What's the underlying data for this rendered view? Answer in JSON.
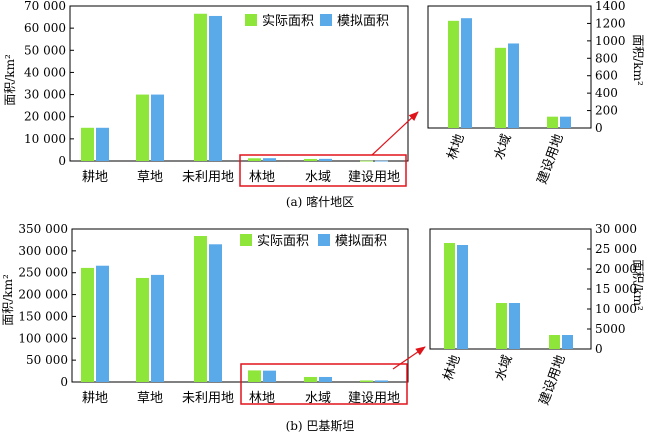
{
  "colors": {
    "actual": "#8ee63a",
    "simulated": "#5aa9e9",
    "highlight": "#e0131a"
  },
  "legend": {
    "actual": "实际面积",
    "simulated": "模拟面积"
  },
  "panels": [
    {
      "caption": "(a) 喀什地区",
      "ylabel": "面积/km²",
      "inset_ylabel": "面积/km²",
      "y_tick_labels": [
        "0",
        "10 000",
        "20 000",
        "30 000",
        "40 000",
        "50 000",
        "60 000",
        "70 000"
      ],
      "inset_tick_labels": [
        "0",
        "200",
        "400",
        "600",
        "800",
        "1000",
        "1200",
        "1400"
      ]
    },
    {
      "caption": "(b) 巴基斯坦",
      "ylabel": "面积/km²",
      "inset_ylabel": "面积/km²",
      "y_tick_labels": [
        "0",
        "50 000",
        "100 000",
        "150 000",
        "200 000",
        "250 000",
        "300 000",
        "350 000"
      ],
      "inset_tick_labels": [
        "0",
        "5000",
        "10 000",
        "15 000",
        "20 000",
        "25 000",
        "30 000"
      ]
    }
  ],
  "chart_data": [
    {
      "type": "bar",
      "title": "(a) 喀什地区",
      "ylabel": "面积/km²",
      "categories": [
        "耕地",
        "草地",
        "未利用地",
        "林地",
        "水域",
        "建设用地"
      ],
      "series": [
        {
          "name": "实际面积",
          "values": [
            15000,
            30000,
            66500,
            1230,
            920,
            130
          ]
        },
        {
          "name": "模拟面积",
          "values": [
            15000,
            30000,
            65500,
            1260,
            970,
            130
          ]
        }
      ],
      "ylim": [
        0,
        70000
      ],
      "legend": "top-right",
      "inset": {
        "categories": [
          "林地",
          "水域",
          "建设用地"
        ],
        "series": [
          {
            "name": "实际面积",
            "values": [
              1230,
              920,
              130
            ]
          },
          {
            "name": "模拟面积",
            "values": [
              1260,
              970,
              130
            ]
          }
        ],
        "ylim": [
          0,
          1400
        ],
        "yaxis_side": "right"
      }
    },
    {
      "type": "bar",
      "title": "(b) 巴基斯坦",
      "ylabel": "面积/km²",
      "categories": [
        "耕地",
        "草地",
        "未利用地",
        "林地",
        "水域",
        "建设用地"
      ],
      "series": [
        {
          "name": "实际面积",
          "values": [
            261000,
            238000,
            334000,
            26500,
            11500,
            3500
          ]
        },
        {
          "name": "模拟面积",
          "values": [
            266000,
            245000,
            315000,
            26000,
            11500,
            3500
          ]
        }
      ],
      "ylim": [
        0,
        350000
      ],
      "legend": "top-right",
      "inset": {
        "categories": [
          "林地",
          "水域",
          "建设用地"
        ],
        "series": [
          {
            "name": "实际面积",
            "values": [
              26500,
              11500,
              3500
            ]
          },
          {
            "name": "模拟面积",
            "values": [
              26000,
              11500,
              3500
            ]
          }
        ],
        "ylim": [
          0,
          30000
        ],
        "yaxis_side": "right"
      }
    }
  ]
}
